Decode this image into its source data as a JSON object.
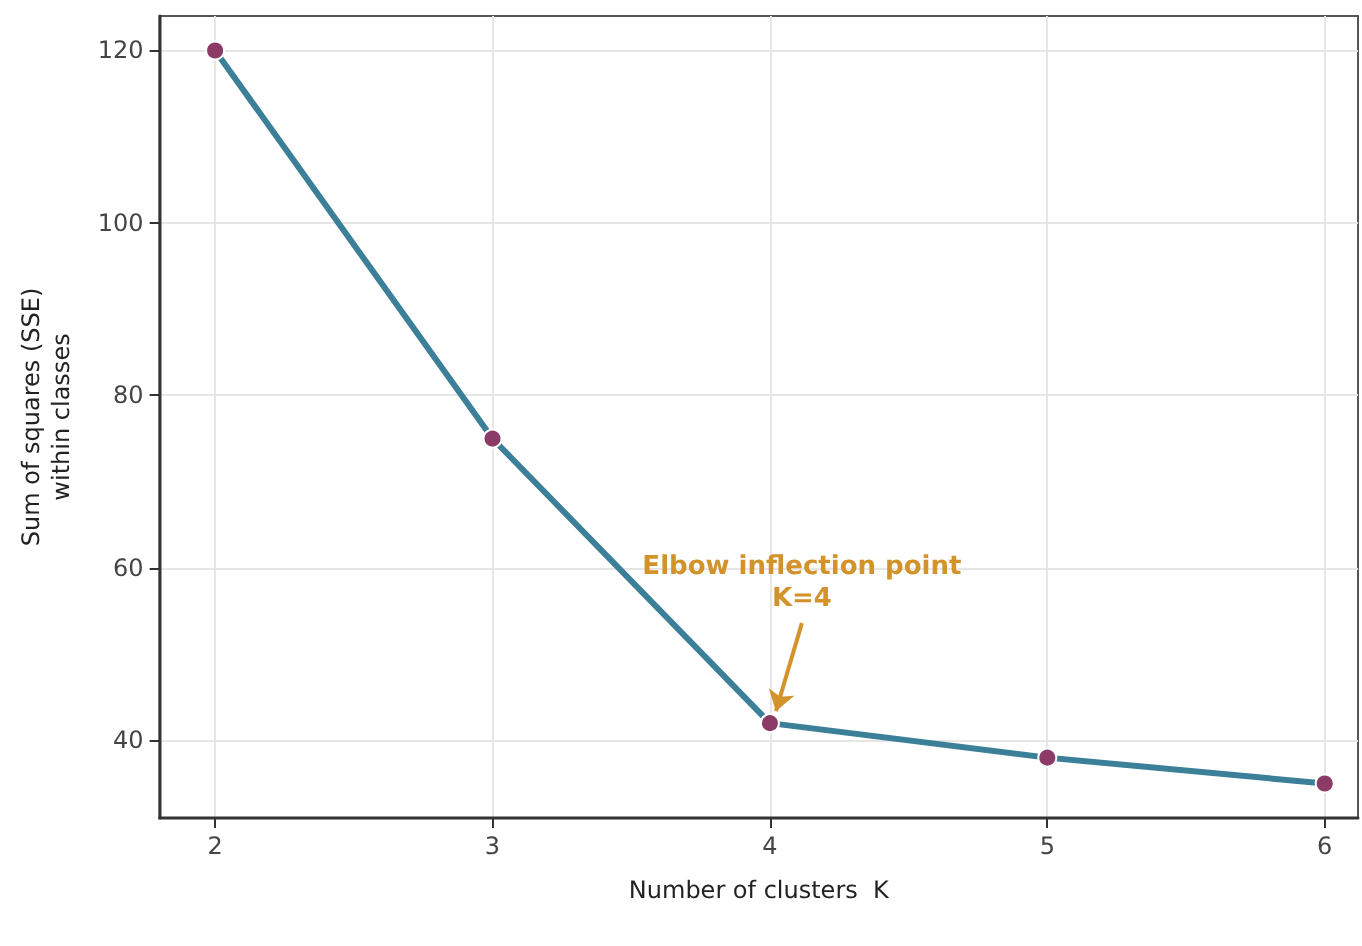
{
  "chart_data": {
    "type": "line",
    "xlabel": "Number of clusters  K",
    "ylabel": "Sum of squares (SSE)\nwithin classes",
    "x": [
      2,
      3,
      4,
      5,
      6
    ],
    "series": [
      {
        "color": "#3b7f99",
        "values": [
          120,
          75,
          42,
          38,
          35
        ]
      }
    ],
    "xlim": [
      1.8,
      6.12
    ],
    "xticks": [
      2,
      3,
      4,
      5,
      6
    ],
    "ylim": [
      31,
      124
    ],
    "yticks": [
      40,
      60,
      80,
      100,
      120
    ],
    "grid": true,
    "marker": "circle",
    "line_style": "solid",
    "annotations": [
      {
        "text": "Elbow inflection point\nK=4",
        "x": 4,
        "y": 42
      }
    ]
  }
}
